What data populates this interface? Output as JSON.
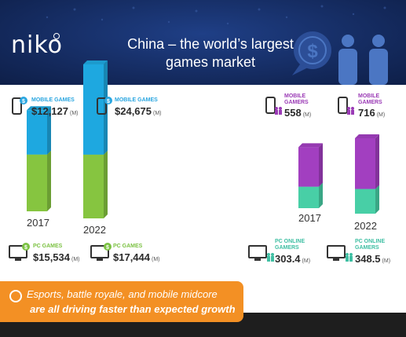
{
  "brand": {
    "logo": "niko"
  },
  "title_line1": "China – the world’s largest",
  "title_line2": "games market",
  "unit": "(M)",
  "years": [
    "2017",
    "2022"
  ],
  "stats": {
    "mobile_games_2017": {
      "label": "MOBILE GAMES",
      "value": "$12,127"
    },
    "mobile_games_2022": {
      "label": "MOBILE GAMES",
      "value": "$24,675"
    },
    "pc_games_2017": {
      "label": "PC GAMES",
      "value": "$15,534"
    },
    "pc_games_2022": {
      "label": "PC GAMES",
      "value": "$17,444"
    },
    "mobile_gamers_2017": {
      "label1": "MOBILE",
      "label2": "GAMERS",
      "value": "558"
    },
    "mobile_gamers_2022": {
      "label1": "MOBILE",
      "label2": "GAMERS",
      "value": "716"
    },
    "pc_online_gamers_2017": {
      "label1": "PC ONLINE",
      "label2": "GAMERS",
      "value": "303.4"
    },
    "pc_online_gamers_2022": {
      "label1": "PC ONLINE",
      "label2": "GAMERS",
      "value": "348.5"
    }
  },
  "banner": {
    "line1": "Esports, battle royale, and mobile midcore",
    "line2": "are all driving faster than expected growth"
  },
  "colors": {
    "mobile_games": "#1ea8e0",
    "pc_games": "#86c540",
    "mobile_gamers": "#a23fc0",
    "pc_online_gamers": "#48cfa6",
    "header": "#13285a",
    "banner": "#f39024"
  },
  "chart_data": [
    {
      "type": "bar",
      "stacked": true,
      "title": "",
      "categories": [
        "2017",
        "2022"
      ],
      "unit": "$M",
      "series": [
        {
          "name": "PC GAMES",
          "values": [
            15534,
            17444
          ]
        },
        {
          "name": "MOBILE GAMES",
          "values": [
            12127,
            24675
          ]
        }
      ]
    },
    {
      "type": "bar",
      "stacked": true,
      "title": "",
      "categories": [
        "2017",
        "2022"
      ],
      "unit": "M",
      "series": [
        {
          "name": "PC ONLINE GAMERS",
          "values": [
            303.4,
            348.5
          ]
        },
        {
          "name": "MOBILE GAMERS",
          "values": [
            558,
            716
          ]
        }
      ]
    }
  ]
}
